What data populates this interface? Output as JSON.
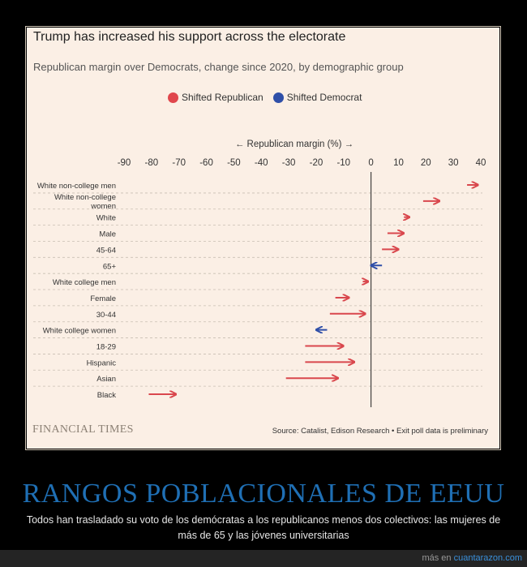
{
  "chart_data": {
    "type": "arrow",
    "title": "Trump has increased his support across the electorate",
    "subtitle": "Republican margin over Democrats, change since 2020, by demographic group",
    "xlabel": "← Republican margin (%) →",
    "xlim": [
      -90,
      40
    ],
    "xticks": [
      -90,
      -80,
      -70,
      -60,
      -50,
      -40,
      -30,
      -20,
      -10,
      0,
      10,
      20,
      30,
      40
    ],
    "legend": [
      {
        "label": "Shifted Republican",
        "color": "#e0464c"
      },
      {
        "label": "Shifted Democrat",
        "color": "#2f4fa8"
      }
    ],
    "colors": {
      "republican": "#d9474d",
      "democrat": "#2f4fa8"
    },
    "categories": [
      {
        "label": [
          "White non-college men"
        ],
        "from": 35,
        "to": 39,
        "shift": "republican"
      },
      {
        "label": [
          "White non-college",
          "women"
        ],
        "from": 19,
        "to": 25,
        "shift": "republican"
      },
      {
        "label": [
          "White"
        ],
        "from": 12,
        "to": 14,
        "shift": "republican"
      },
      {
        "label": [
          "Male"
        ],
        "from": 6,
        "to": 12,
        "shift": "republican"
      },
      {
        "label": [
          "45-64"
        ],
        "from": 4,
        "to": 10,
        "shift": "republican"
      },
      {
        "label": [
          "65+"
        ],
        "from": 4,
        "to": 0,
        "shift": "democrat"
      },
      {
        "label": [
          "White college men"
        ],
        "from": -3,
        "to": -1,
        "shift": "republican"
      },
      {
        "label": [
          "Female"
        ],
        "from": -13,
        "to": -8,
        "shift": "republican"
      },
      {
        "label": [
          "30-44"
        ],
        "from": -15,
        "to": -2,
        "shift": "republican"
      },
      {
        "label": [
          "White college women"
        ],
        "from": -16,
        "to": -20,
        "shift": "democrat"
      },
      {
        "label": [
          "18-29"
        ],
        "from": -24,
        "to": -10,
        "shift": "republican"
      },
      {
        "label": [
          "Hispanic"
        ],
        "from": -24,
        "to": -6,
        "shift": "republican"
      },
      {
        "label": [
          "Asian"
        ],
        "from": -31,
        "to": -12,
        "shift": "republican"
      },
      {
        "label": [
          "Black"
        ],
        "from": -81,
        "to": -71,
        "shift": "republican"
      }
    ]
  },
  "branding": {
    "logo": "FINANCIAL TIMES"
  },
  "source": "Source: Catalist, Edison Research • Exit poll data is preliminary",
  "caption": {
    "title": "RANGOS POBLACIONALES DE EEUU",
    "text": "Todos han trasladado su voto de los demócratas a los republicanos menos dos colectivos: las mujeres de más de 65 y las jóvenes universitarias"
  },
  "footer": {
    "prefix": "más en",
    "site": "cuantarazon.com"
  }
}
